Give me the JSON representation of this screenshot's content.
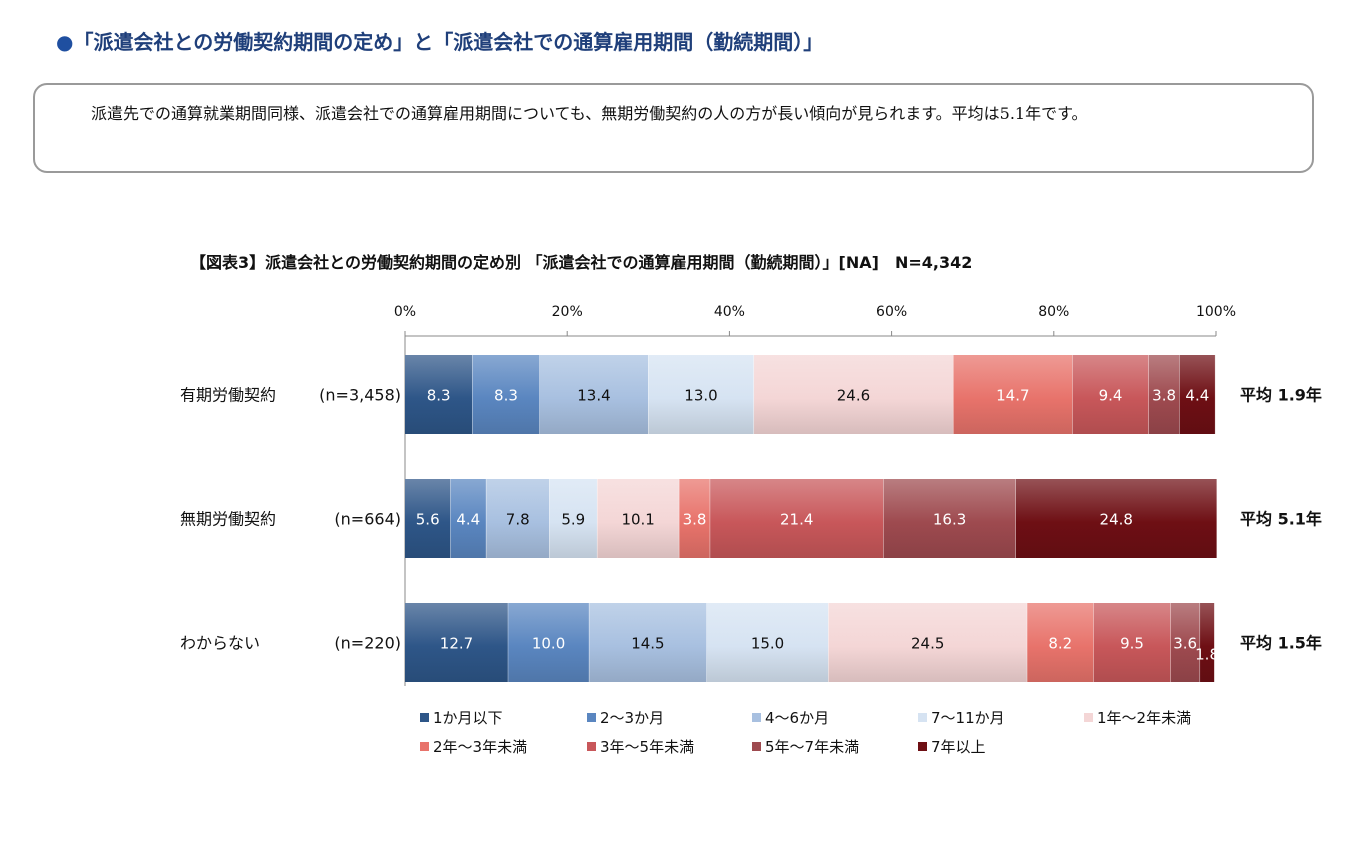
{
  "heading": {
    "bullet": "●",
    "text": "「派遣会社との労働契約期間の定め」と「派遣会社での通算雇用期間（勤続期間）」"
  },
  "note": {
    "text": "派遣先での通算就業期間同様、派遣会社での通算雇用期間についても、無期労働契約の人の方が長い傾向が見られます。平均は5.1年です。"
  },
  "chart_data": {
    "type": "bar",
    "orientation": "horizontal",
    "stacked": "percent",
    "title": "【図表3】派遣会社との労働契約期間の定め別 「派遣会社での通算雇用期間（勤続期間）」[NA]　N=4,342",
    "xlim": [
      0,
      100
    ],
    "x_ticks": [
      "0%",
      "20%",
      "40%",
      "60%",
      "80%",
      "100%"
    ],
    "legend_position": "bottom",
    "categories": [
      {
        "label": "有期労働契約",
        "n": "(n=3,458)",
        "average": "平均 1.9年"
      },
      {
        "label": "無期労働契約",
        "n": "(n=664)",
        "average": "平均 5.1年"
      },
      {
        "label": "わからない",
        "n": "(n=220)",
        "average": "平均 1.5年"
      }
    ],
    "series": [
      {
        "name": "1か月以下",
        "color": "#2e5688",
        "values": [
          8.3,
          5.6,
          12.7
        ]
      },
      {
        "name": "2～3か月",
        "color": "#5a86c0",
        "values": [
          8.3,
          4.4,
          10.0
        ]
      },
      {
        "name": "4～6か月",
        "color": "#a8c0e0",
        "values": [
          13.4,
          7.8,
          14.5
        ]
      },
      {
        "name": "7～11か月",
        "color": "#d6e3f2",
        "values": [
          13.0,
          5.9,
          15.0
        ]
      },
      {
        "name": "1年～2年未満",
        "color": "#f4d6d6",
        "values": [
          24.6,
          10.1,
          24.5
        ]
      },
      {
        "name": "2年～3年未満",
        "color": "#e8736b",
        "values": [
          14.7,
          3.8,
          8.2
        ]
      },
      {
        "name": "3年～5年未満",
        "color": "#c8575a",
        "values": [
          9.4,
          21.4,
          9.5
        ]
      },
      {
        "name": "5年～7年未満",
        "color": "#9e4a4f",
        "values": [
          3.8,
          16.3,
          3.6
        ]
      },
      {
        "name": "7年以上",
        "color": "#6e0f14",
        "values": [
          4.4,
          24.8,
          1.8
        ]
      }
    ]
  }
}
